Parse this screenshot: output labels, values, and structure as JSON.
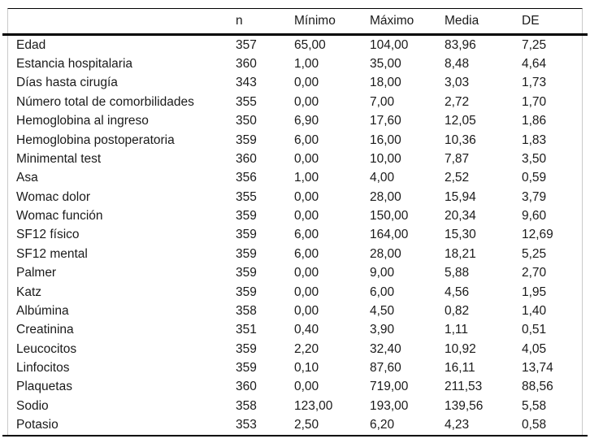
{
  "table": {
    "header": {
      "label": "",
      "n": "n",
      "min": "Mínimo",
      "max": "Máximo",
      "media": "Media",
      "de": "DE"
    },
    "rows": [
      {
        "label": "Edad",
        "n": "357",
        "min": "65,00",
        "max": "104,00",
        "media": "83,96",
        "de": "7,25"
      },
      {
        "label": "Estancia hospitalaria",
        "n": "360",
        "min": "1,00",
        "max": "35,00",
        "media": "8,48",
        "de": "4,64"
      },
      {
        "label": "Días hasta cirugía",
        "n": "343",
        "min": "0,00",
        "max": "18,00",
        "media": "3,03",
        "de": "1,73"
      },
      {
        "label": "Número total de comorbilidades",
        "n": "355",
        "min": "0,00",
        "max": "7,00",
        "media": "2,72",
        "de": "1,70"
      },
      {
        "label": "Hemoglobina al ingreso",
        "n": "350",
        "min": "6,90",
        "max": "17,60",
        "media": "12,05",
        "de": "1,86"
      },
      {
        "label": "Hemoglobina postoperatoria",
        "n": "359",
        "min": "6,00",
        "max": "16,00",
        "media": "10,36",
        "de": "1,83"
      },
      {
        "label": "Minimental test",
        "n": "360",
        "min": "0,00",
        "max": "10,00",
        "media": "7,87",
        "de": "3,50"
      },
      {
        "label": "Asa",
        "n": "356",
        "min": "1,00",
        "max": "4,00",
        "media": "2,52",
        "de": "0,59"
      },
      {
        "label": "Womac dolor",
        "n": "355",
        "min": "0,00",
        "max": "28,00",
        "media": "15,94",
        "de": "3,79"
      },
      {
        "label": "Womac función",
        "n": "359",
        "min": "0,00",
        "max": "150,00",
        "media": "20,34",
        "de": "9,60"
      },
      {
        "label": "SF12 físico",
        "n": "359",
        "min": "6,00",
        "max": "164,00",
        "media": "15,30",
        "de": "12,69"
      },
      {
        "label": "SF12 mental",
        "n": "359",
        "min": "6,00",
        "max": "28,00",
        "media": "18,21",
        "de": "5,25"
      },
      {
        "label": "Palmer",
        "n": "359",
        "min": "0,00",
        "max": "9,00",
        "media": "5,88",
        "de": "2,70"
      },
      {
        "label": "Katz",
        "n": "359",
        "min": "0,00",
        "max": "6,00",
        "media": "4,56",
        "de": "1,95"
      },
      {
        "label": "Albúmina",
        "n": "358",
        "min": "0,00",
        "max": "4,50",
        "media": "0,82",
        "de": "1,40"
      },
      {
        "label": "Creatinina",
        "n": "351",
        "min": "0,40",
        "max": "3,90",
        "media": "1,11",
        "de": "0,51"
      },
      {
        "label": "Leucocitos",
        "n": "359",
        "min": "2,20",
        "max": "32,40",
        "media": "10,92",
        "de": "4,05"
      },
      {
        "label": "Linfocitos",
        "n": "359",
        "min": "0,10",
        "max": "87,60",
        "media": "16,11",
        "de": "13,74"
      },
      {
        "label": "Plaquetas",
        "n": "360",
        "min": "0,00",
        "max": "719,00",
        "media": "211,53",
        "de": "88,56"
      },
      {
        "label": "Sodio",
        "n": "358",
        "min": "123,00",
        "max": "193,00",
        "media": "139,56",
        "de": "5,58"
      },
      {
        "label": "Potasio",
        "n": "353",
        "min": "2,50",
        "max": "6,20",
        "media": "4,23",
        "de": "0,58"
      }
    ]
  },
  "colors": {
    "text": "#1a1a1a",
    "rule": "#000000",
    "frame": "#c9c9c9",
    "background": "#ffffff"
  }
}
